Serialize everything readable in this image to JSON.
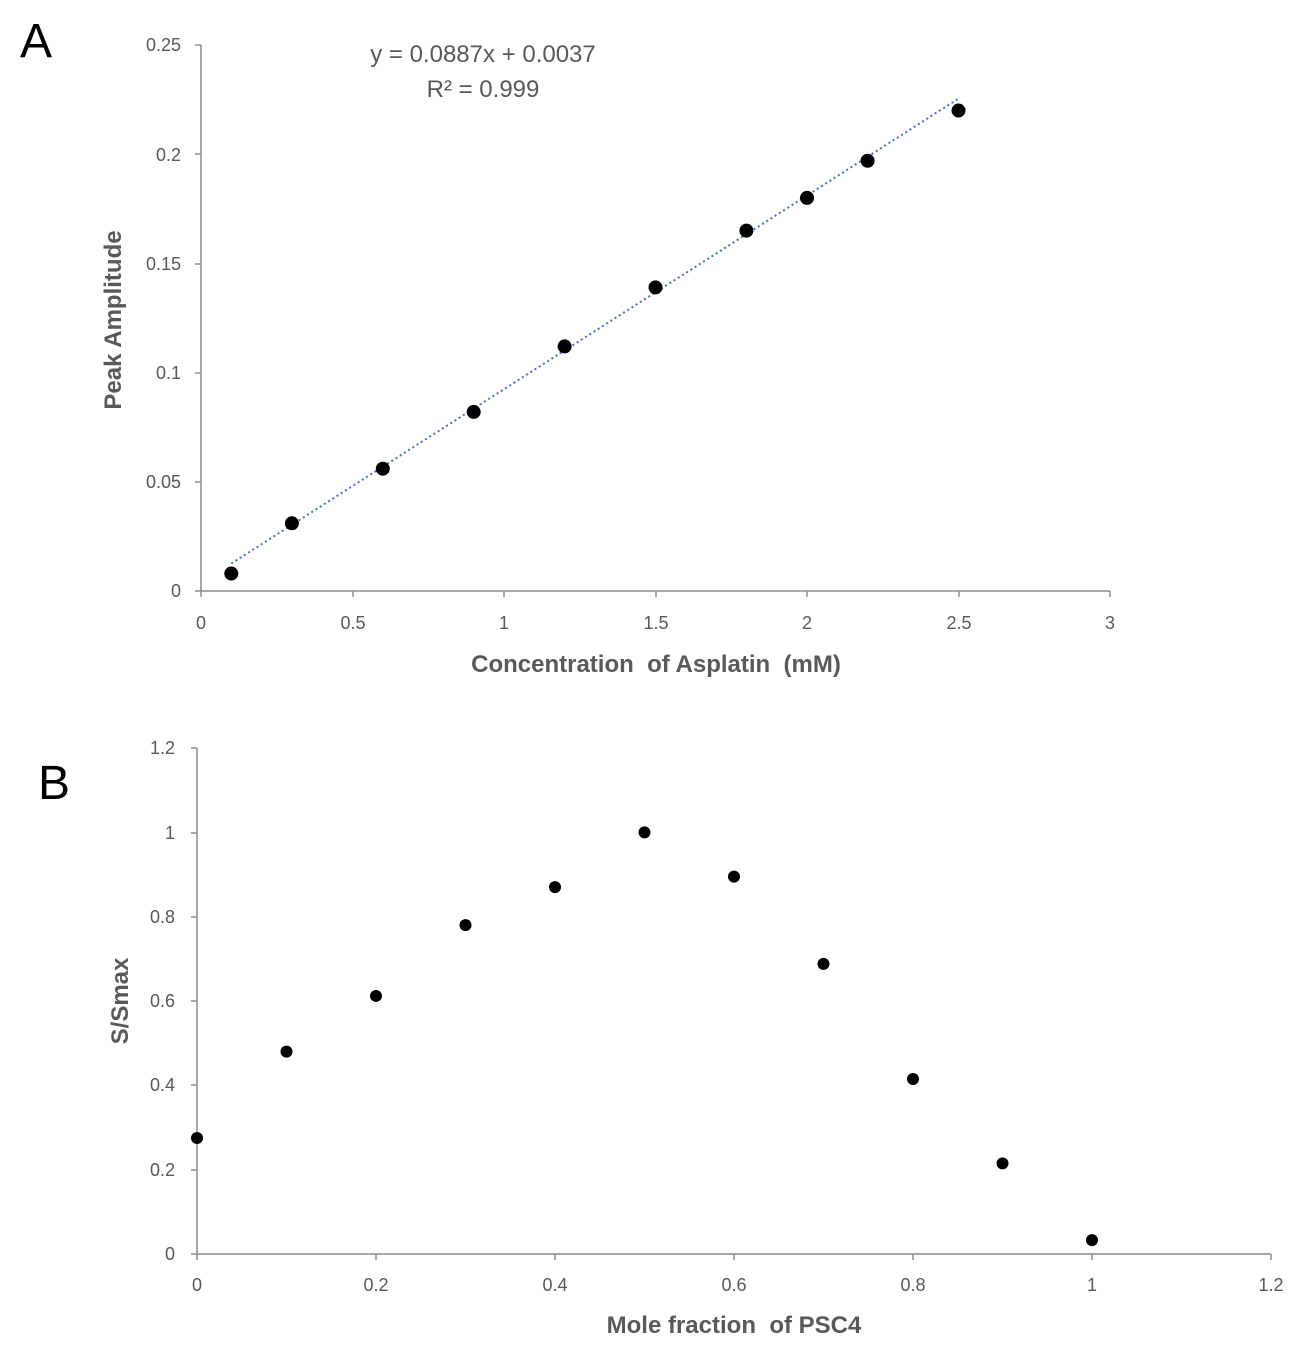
{
  "chart_data": [
    {
      "panel": "A",
      "type": "scatter",
      "title": "",
      "xlabel": "Concentration  of Asplatin  (mM)",
      "ylabel": "Peak Amplitude",
      "xlim": [
        0,
        3
      ],
      "ylim": [
        0,
        0.25
      ],
      "x_ticks": [
        "0",
        "0.5",
        "1",
        "1.5",
        "2",
        "2.5",
        "3"
      ],
      "y_ticks": [
        "0",
        "0.05",
        "0.1",
        "0.15",
        "0.2",
        "0.25"
      ],
      "grid": false,
      "series": [
        {
          "name": "Peak Amplitude",
          "x": [
            0.1,
            0.3,
            0.6,
            0.9,
            1.2,
            1.5,
            1.8,
            2.0,
            2.2,
            2.5
          ],
          "y": [
            0.008,
            0.031,
            0.056,
            0.082,
            0.112,
            0.139,
            0.165,
            0.18,
            0.197,
            0.22
          ],
          "color": "#000000"
        }
      ],
      "trendline": {
        "type": "linear",
        "slope": 0.0887,
        "intercept": 0.0037,
        "x_range": [
          0.1,
          2.5
        ],
        "color": "#4472c4",
        "style": "dotted"
      },
      "annotations": [
        "y = 0.0887x + 0.0037",
        "R² = 0.999"
      ]
    },
    {
      "panel": "B",
      "type": "scatter",
      "title": "",
      "xlabel": "Mole fraction  of PSC4",
      "ylabel": "S/Smax",
      "xlim": [
        0,
        1.2
      ],
      "ylim": [
        0,
        1.2
      ],
      "x_ticks": [
        "0",
        "0.2",
        "0.4",
        "0.6",
        "0.8",
        "1",
        "1.2"
      ],
      "y_ticks": [
        "0",
        "0.2",
        "0.4",
        "0.6",
        "0.8",
        "1",
        "1.2"
      ],
      "grid": false,
      "series": [
        {
          "name": "S/Smax",
          "x": [
            0,
            0.1,
            0.2,
            0.3,
            0.4,
            0.5,
            0.6,
            0.7,
            0.8,
            0.9,
            1.0
          ],
          "y": [
            0.275,
            0.48,
            0.612,
            0.78,
            0.87,
            1.0,
            0.895,
            0.688,
            0.415,
            0.215,
            0.033
          ],
          "color": "#000000"
        }
      ]
    }
  ]
}
